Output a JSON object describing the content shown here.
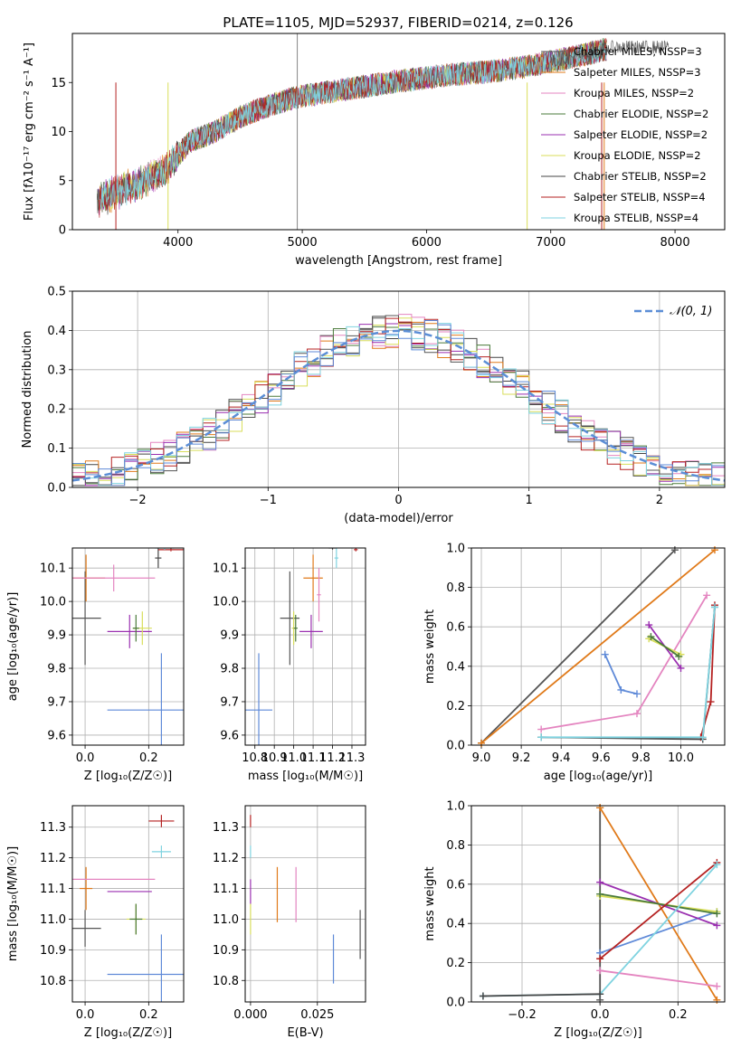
{
  "figure_title": "PLATE=1105, MJD=52937, FIBERID=0214, z=0.126",
  "series_colors": [
    "#555555",
    "#e07a1a",
    "#e485c0",
    "#4a7a3a",
    "#9a2fb0",
    "#d8de5a",
    "#444444",
    "#b52222",
    "#7fd3e0"
  ],
  "chart_data": [
    {
      "id": "spectrum",
      "type": "line",
      "title": "PLATE=1105, MJD=52937, FIBERID=0214, z=0.126",
      "xlabel": "wavelength [Angstrom, rest frame]",
      "ylabel": "Flux [fλ10⁻¹⁷ erg cm⁻² s⁻¹ A⁻¹]",
      "xlim": [
        3150,
        8400
      ],
      "ylim": [
        0,
        20
      ],
      "xticks": [
        4000,
        5000,
        6000,
        7000,
        8000
      ],
      "yticks": [
        0,
        5,
        10,
        15
      ],
      "grid": false,
      "legend_position": "top-right",
      "continuum": {
        "x": [
          3350,
          3500,
          3700,
          3900,
          4000,
          4100,
          4300,
          4500,
          4700,
          4900,
          5000,
          5200,
          5500,
          5800,
          6000,
          6200,
          6500,
          6800,
          7100,
          7300,
          7500
        ],
        "y": [
          3.0,
          3.8,
          4.8,
          6.0,
          7.6,
          9.0,
          10.0,
          11.5,
          12.5,
          13.3,
          13.6,
          14.0,
          14.6,
          15.2,
          15.5,
          15.8,
          16.1,
          16.6,
          17.4,
          17.9,
          18.6
        ]
      },
      "series": [
        {
          "name": "Chabrier MILES, N_SSP=3"
        },
        {
          "name": "Salpeter MILES, N_SSP=3"
        },
        {
          "name": "Kroupa MILES, N_SSP=2"
        },
        {
          "name": "Chabrier ELODIE, N_SSP=2"
        },
        {
          "name": "Salpeter ELODIE, N_SSP=2"
        },
        {
          "name": "Kroupa ELODIE, N_SSP=2"
        },
        {
          "name": "Chabrier STELIB, N_SSP=2"
        },
        {
          "name": "Salpeter STELIB, N_SSP=4"
        },
        {
          "name": "Kroupa STELIB, N_SSP=4"
        }
      ]
    },
    {
      "id": "residual-histogram",
      "type": "line",
      "xlabel": "(data-model)/error",
      "ylabel": "Normed distribution",
      "xlim": [
        -2.5,
        2.5
      ],
      "ylim": [
        0,
        0.5
      ],
      "xticks": [
        -2,
        -1,
        0,
        1,
        2
      ],
      "yticks": [
        0.0,
        0.1,
        0.2,
        0.3,
        0.4,
        0.5
      ],
      "grid": true,
      "legend_position": "top-right",
      "series": [
        {
          "name": "𝒩(0, 1)",
          "mu": 0,
          "sigma": 1
        }
      ]
    },
    {
      "id": "z-age",
      "type": "scatter",
      "xlabel": "Z [log₁₀(Z/Z☉)]",
      "ylabel": "age  [log₁₀(age/yr)]",
      "xlim": [
        -0.04,
        0.31
      ],
      "ylim": [
        9.57,
        10.16
      ],
      "xticks": [
        0.0,
        0.2
      ],
      "yticks": [
        9.6,
        9.7,
        9.8,
        9.9,
        10.0,
        10.1
      ],
      "grid": true,
      "points": [
        {
          "c": 0,
          "x": 0.0,
          "y": 9.95,
          "xe": 0.05,
          "ye": 0.14
        },
        {
          "c": 1,
          "x": 0.003,
          "y": 10.07,
          "xe": 0.06,
          "ye": 0.07
        },
        {
          "c": 2,
          "x": 0.09,
          "y": 10.07,
          "xe": 0.13,
          "ye": 0.04
        },
        {
          "c": 4,
          "x": 0.14,
          "y": 9.91,
          "xe": 0.07,
          "ye": 0.05
        },
        {
          "c": 5,
          "x": 0.18,
          "y": 9.92,
          "xe": 0.03,
          "ye": 0.05
        },
        {
          "c": 3,
          "x": 0.16,
          "y": 9.92,
          "xe": 0.01,
          "ye": 0.04
        },
        {
          "c": 6,
          "x": 0.23,
          "y": 10.13,
          "xe": 0.01,
          "ye": 0.03
        },
        {
          "c": 7,
          "x": 0.27,
          "y": 10.155,
          "xe": 0.04,
          "ye": 0.005
        },
        {
          "c": 8,
          "x": 0.25,
          "y": 10.16,
          "xe": 0.03,
          "ye": 0.005
        },
        {
          "c": 9,
          "x": 0.24,
          "y": 9.675,
          "xe": 0.17,
          "ye": 0.17
        }
      ]
    },
    {
      "id": "mass-age",
      "type": "scatter",
      "xlabel": "mass [log₁₀(M/M☉)]",
      "xlim": [
        10.75,
        11.37
      ],
      "ylim": [
        9.57,
        10.16
      ],
      "xticks": [
        10.8,
        10.9,
        11.0,
        11.1,
        11.2,
        11.3
      ],
      "yticks": [
        9.6,
        9.7,
        9.8,
        9.9,
        10.0,
        10.1
      ],
      "grid": true,
      "points": [
        {
          "c": 0,
          "x": 10.98,
          "y": 9.95,
          "xe": 0.05,
          "ye": 0.14
        },
        {
          "c": 1,
          "x": 11.1,
          "y": 10.07,
          "xe": 0.05,
          "ye": 0.07
        },
        {
          "c": 2,
          "x": 11.13,
          "y": 10.02,
          "xe": 0.01,
          "ye": 0.08
        },
        {
          "c": 4,
          "x": 11.09,
          "y": 9.91,
          "xe": 0.06,
          "ye": 0.05
        },
        {
          "c": 5,
          "x": 11.0,
          "y": 9.92,
          "xe": 0.01,
          "ye": 0.05
        },
        {
          "c": 3,
          "x": 11.01,
          "y": 9.92,
          "xe": 0.01,
          "ye": 0.04
        },
        {
          "c": 6,
          "x": 11.2,
          "y": 10.16,
          "xe": 0.02,
          "ye": 0.005
        },
        {
          "c": 7,
          "x": 11.32,
          "y": 10.155,
          "xe": 0.01,
          "ye": 0.005
        },
        {
          "c": 8,
          "x": 11.22,
          "y": 10.13,
          "xe": 0.01,
          "ye": 0.03
        },
        {
          "c": 9,
          "x": 10.82,
          "y": 9.675,
          "xe": 0.07,
          "ye": 0.17
        }
      ]
    },
    {
      "id": "age-weight",
      "type": "line",
      "xlabel": "age  [log₁₀(age/yr)]",
      "ylabel": "mass weight",
      "xlim": [
        8.95,
        10.22
      ],
      "ylim": [
        0,
        1.0
      ],
      "xticks": [
        9.0,
        9.2,
        9.4,
        9.6,
        9.8,
        10.0
      ],
      "yticks": [
        0.0,
        0.2,
        0.4,
        0.6,
        0.8,
        1.0
      ],
      "grid": true,
      "series": [
        {
          "c": 0,
          "x": [
            9.0,
            9.97
          ],
          "y": [
            0.01,
            0.99
          ]
        },
        {
          "c": 1,
          "x": [
            9.0,
            10.17
          ],
          "y": [
            0.01,
            0.99
          ]
        },
        {
          "c": 2,
          "x": [
            9.3,
            9.78,
            10.13
          ],
          "y": [
            0.08,
            0.16,
            0.76
          ]
        },
        {
          "c": 9,
          "x": [
            9.62,
            9.7,
            9.78
          ],
          "y": [
            0.46,
            0.28,
            0.26
          ]
        },
        {
          "c": 4,
          "x": [
            9.84,
            10.0
          ],
          "y": [
            0.61,
            0.39
          ]
        },
        {
          "c": 5,
          "x": [
            9.84,
            10.0
          ],
          "y": [
            0.54,
            0.46
          ]
        },
        {
          "c": 3,
          "x": [
            9.85,
            9.99
          ],
          "y": [
            0.55,
            0.45
          ]
        },
        {
          "c": 7,
          "x": [
            10.1,
            10.15,
            10.17
          ],
          "y": [
            0.04,
            0.22,
            0.71
          ]
        },
        {
          "c": 6,
          "x": [
            9.3,
            10.11,
            10.17
          ],
          "y": [
            0.04,
            0.03,
            0.7
          ]
        },
        {
          "c": 8,
          "x": [
            9.3,
            10.11,
            10.17
          ],
          "y": [
            0.04,
            0.04,
            0.7
          ]
        }
      ]
    },
    {
      "id": "z-mass",
      "type": "scatter",
      "xlabel": "Z [log₁₀(Z/Z☉)]",
      "ylabel": "mass [log₁₀(M/M☉)]",
      "xlim": [
        -0.04,
        0.31
      ],
      "ylim": [
        10.73,
        11.37
      ],
      "xticks": [
        0.0,
        0.2
      ],
      "yticks": [
        10.8,
        10.9,
        11.0,
        11.1,
        11.2,
        11.3
      ],
      "grid": true,
      "points": [
        {
          "c": 0,
          "x": 0.0,
          "y": 10.97,
          "xe": 0.05,
          "ye": 0.06
        },
        {
          "c": 1,
          "x": 0.003,
          "y": 11.1,
          "xe": 0.02,
          "ye": 0.07
        },
        {
          "c": 2,
          "x": 0.09,
          "y": 11.13,
          "xe": 0.13,
          "ye": 0.0
        },
        {
          "c": 4,
          "x": 0.14,
          "y": 11.09,
          "xe": 0.07,
          "ye": 0.0
        },
        {
          "c": 5,
          "x": 0.16,
          "y": 11.0,
          "xe": 0.03,
          "ye": 0.05
        },
        {
          "c": 3,
          "x": 0.16,
          "y": 11.0,
          "xe": 0.02,
          "ye": 0.05
        },
        {
          "c": 7,
          "x": 0.24,
          "y": 11.32,
          "xe": 0.04,
          "ye": 0.02
        },
        {
          "c": 8,
          "x": 0.24,
          "y": 11.22,
          "xe": 0.03,
          "ye": 0.02
        },
        {
          "c": 9,
          "x": 0.24,
          "y": 10.82,
          "xe": 0.17,
          "ye": 0.13
        }
      ]
    },
    {
      "id": "ebv-mass",
      "type": "scatter",
      "xlabel": "E(B-V)",
      "xlim": [
        -0.002,
        0.043
      ],
      "ylim": [
        10.73,
        11.37
      ],
      "xticks": [
        0.0,
        0.025
      ],
      "yticks": [
        10.8,
        10.9,
        11.0,
        11.1,
        11.2,
        11.3
      ],
      "grid": true,
      "points": [
        {
          "c": 4,
          "x": 0.0,
          "y": 11.09,
          "xe": 0,
          "ye": 0.04
        },
        {
          "c": 5,
          "x": 0.0,
          "y": 11.0,
          "xe": 0,
          "ye": 0.05
        },
        {
          "c": 8,
          "x": 0.0,
          "y": 11.22,
          "xe": 0,
          "ye": 0.02
        },
        {
          "c": 7,
          "x": 0.0,
          "y": 11.32,
          "xe": 0,
          "ye": 0.02
        },
        {
          "c": 1,
          "x": 0.01,
          "y": 11.08,
          "xe": 0,
          "ye": 0.09
        },
        {
          "c": 2,
          "x": 0.017,
          "y": 11.08,
          "xe": 0,
          "ye": 0.09
        },
        {
          "c": 9,
          "x": 0.031,
          "y": 10.87,
          "xe": 0,
          "ye": 0.08
        },
        {
          "c": 0,
          "x": 0.041,
          "y": 10.95,
          "xe": 0,
          "ye": 0.08
        }
      ]
    },
    {
      "id": "z-weight",
      "type": "line",
      "xlabel": "Z [log₁₀(Z/Z☉)]",
      "ylabel": "mass weight",
      "xlim": [
        -0.33,
        0.32
      ],
      "ylim": [
        0,
        1.0
      ],
      "xticks": [
        -0.2,
        0.0,
        0.2
      ],
      "yticks": [
        0.0,
        0.2,
        0.4,
        0.6,
        0.8,
        1.0
      ],
      "grid": true,
      "series": [
        {
          "c": 0,
          "x": [
            0.0,
            0.0
          ],
          "y": [
            0.99,
            0.01
          ]
        },
        {
          "c": 1,
          "x": [
            0.0,
            0.3
          ],
          "y": [
            0.99,
            0.01
          ]
        },
        {
          "c": 2,
          "x": [
            0.0,
            0.3
          ],
          "y": [
            0.16,
            0.08
          ]
        },
        {
          "c": 9,
          "x": [
            0.0,
            0.3
          ],
          "y": [
            0.25,
            0.46
          ]
        },
        {
          "c": 4,
          "x": [
            0.0,
            0.3
          ],
          "y": [
            0.61,
            0.39
          ]
        },
        {
          "c": 5,
          "x": [
            0.0,
            0.3
          ],
          "y": [
            0.54,
            0.46
          ]
        },
        {
          "c": 3,
          "x": [
            0.0,
            0.3
          ],
          "y": [
            0.55,
            0.45
          ]
        },
        {
          "c": 7,
          "x": [
            0.0,
            0.3
          ],
          "y": [
            0.22,
            0.71
          ]
        },
        {
          "c": 8,
          "x": [
            -0.3,
            0.0,
            0.3
          ],
          "y": [
            0.03,
            0.04,
            0.7
          ]
        },
        {
          "c": 6,
          "x": [
            -0.3,
            0.0
          ],
          "y": [
            0.03,
            0.04
          ]
        }
      ]
    }
  ]
}
